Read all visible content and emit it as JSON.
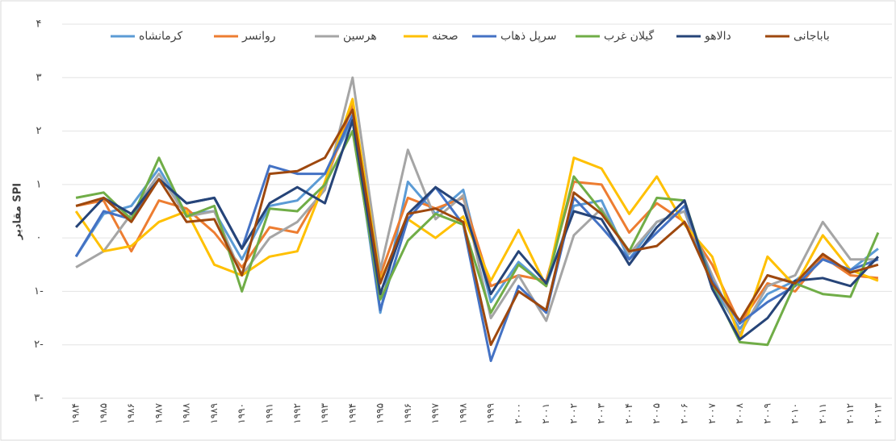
{
  "chart_data": {
    "type": "line",
    "y_label": "مقادیر SPI",
    "categories": [
      "۱۹۸۴",
      "۱۹۸۵",
      "۱۹۸۶",
      "۱۹۸۷",
      "۱۹۸۸",
      "۱۹۸۹",
      "۱۹۹۰",
      "۱۹۹۱",
      "۱۹۹۲",
      "۱۹۹۳",
      "۱۹۹۴",
      "۱۹۹۵",
      "۱۹۹۶",
      "۱۹۹۷",
      "۱۹۹۸",
      "۱۹۹۹",
      "۲۰۰۰",
      "۲۰۰۱",
      "۲۰۰۲",
      "۲۰۰۳",
      "۲۰۰۴",
      "۲۰۰۵",
      "۲۰۰۶",
      "۲۰۰۷",
      "۲۰۰۸",
      "۲۰۰۹",
      "۲۰۱۰",
      "۲۰۱۱",
      "۲۰۱۲",
      "۲۰۱۳"
    ],
    "ylim": [
      -3,
      4
    ],
    "yticks": [
      {
        "value": -3,
        "label": "۳-"
      },
      {
        "value": -2,
        "label": "۲-"
      },
      {
        "value": -1,
        "label": "۱-"
      },
      {
        "value": 0,
        "label": "۰"
      },
      {
        "value": 1,
        "label": "۱"
      },
      {
        "value": 2,
        "label": "۲"
      },
      {
        "value": 3,
        "label": "۳"
      },
      {
        "value": 4,
        "label": "۴"
      }
    ],
    "grid": true,
    "series": [
      {
        "name": "کرمانشاه",
        "color": "#5b9bd5",
        "values": [
          -0.35,
          0.45,
          0.6,
          1.3,
          0.45,
          0.5,
          -0.4,
          0.6,
          0.7,
          1.2,
          2.2,
          -1.4,
          1.05,
          0.45,
          0.9,
          -1.2,
          -0.45,
          -0.9,
          0.6,
          0.7,
          -0.4,
          0.3,
          0.5,
          -0.9,
          -1.7,
          -1.05,
          -0.8,
          -0.4,
          -0.6,
          -0.2
        ]
      },
      {
        "name": "روانسر",
        "color": "#ed7d31",
        "values": [
          0.6,
          0.7,
          -0.25,
          0.7,
          0.55,
          0.1,
          -0.55,
          0.2,
          0.1,
          1.0,
          2.5,
          -0.7,
          0.75,
          0.55,
          0.75,
          -0.9,
          -0.7,
          -0.8,
          1.05,
          1.0,
          0.1,
          0.65,
          0.3,
          -0.5,
          -1.6,
          -0.85,
          -1.0,
          -0.35,
          -0.7,
          -0.75
        ]
      },
      {
        "name": "هرسین",
        "color": "#a5a5a5",
        "values": [
          -0.55,
          -0.25,
          0.45,
          1.2,
          0.4,
          0.5,
          -0.7,
          0.0,
          0.3,
          0.9,
          3.0,
          -0.6,
          1.65,
          0.35,
          0.8,
          -1.5,
          -0.7,
          -1.55,
          0.05,
          0.55,
          -0.3,
          0.3,
          0.5,
          -0.7,
          -1.8,
          -0.9,
          -0.7,
          0.3,
          -0.4,
          -0.4
        ]
      },
      {
        "name": "صحنه",
        "color": "#ffc000",
        "values": [
          0.5,
          -0.25,
          -0.15,
          0.3,
          0.5,
          -0.5,
          -0.7,
          -0.35,
          -0.25,
          1.05,
          2.6,
          -0.8,
          0.35,
          0.0,
          0.4,
          -0.8,
          0.15,
          -0.9,
          1.5,
          1.3,
          0.45,
          1.15,
          0.25,
          -0.35,
          -1.9,
          -0.35,
          -0.9,
          0.05,
          -0.6,
          -0.8
        ]
      },
      {
        "name": "سرپل ذهاب",
        "color": "#4472c4",
        "values": [
          -0.35,
          0.5,
          0.35,
          1.1,
          0.65,
          0.75,
          -0.2,
          1.35,
          1.2,
          1.2,
          2.3,
          -1.35,
          0.35,
          0.95,
          0.25,
          -2.3,
          -0.9,
          -1.4,
          0.75,
          0.2,
          -0.4,
          0.1,
          0.6,
          -0.8,
          -1.6,
          -1.2,
          -0.9,
          -0.4,
          -0.6,
          -0.4
        ]
      },
      {
        "name": "گیلان غرب",
        "color": "#70ad47",
        "values": [
          0.75,
          0.85,
          0.35,
          1.5,
          0.4,
          0.6,
          -1.0,
          0.55,
          0.5,
          1.0,
          2.0,
          -1.15,
          -0.05,
          0.45,
          0.25,
          -1.4,
          -0.5,
          -0.9,
          1.15,
          0.5,
          -0.25,
          0.75,
          0.7,
          -0.9,
          -1.95,
          -2.0,
          -0.85,
          -1.05,
          -1.1,
          0.1
        ]
      },
      {
        "name": "دالاهو",
        "color": "#264478",
        "values": [
          0.2,
          0.75,
          0.45,
          1.1,
          0.65,
          0.75,
          -0.2,
          0.65,
          0.95,
          0.65,
          2.2,
          -1.05,
          0.45,
          0.95,
          0.6,
          -1.05,
          -0.25,
          -0.85,
          0.5,
          0.35,
          -0.5,
          0.2,
          0.7,
          -0.95,
          -1.9,
          -1.5,
          -0.8,
          -0.75,
          -0.9,
          -0.35
        ]
      },
      {
        "name": "باباجانی",
        "color": "#9e480e",
        "values": [
          0.6,
          0.75,
          0.3,
          1.1,
          0.3,
          0.35,
          -0.7,
          1.2,
          1.25,
          1.5,
          2.4,
          -0.85,
          0.45,
          0.55,
          0.3,
          -2.0,
          -1.0,
          -1.35,
          0.85,
          0.45,
          -0.25,
          -0.15,
          0.3,
          -0.85,
          -1.55,
          -0.7,
          -0.85,
          -0.3,
          -0.65,
          -0.5
        ]
      }
    ]
  }
}
